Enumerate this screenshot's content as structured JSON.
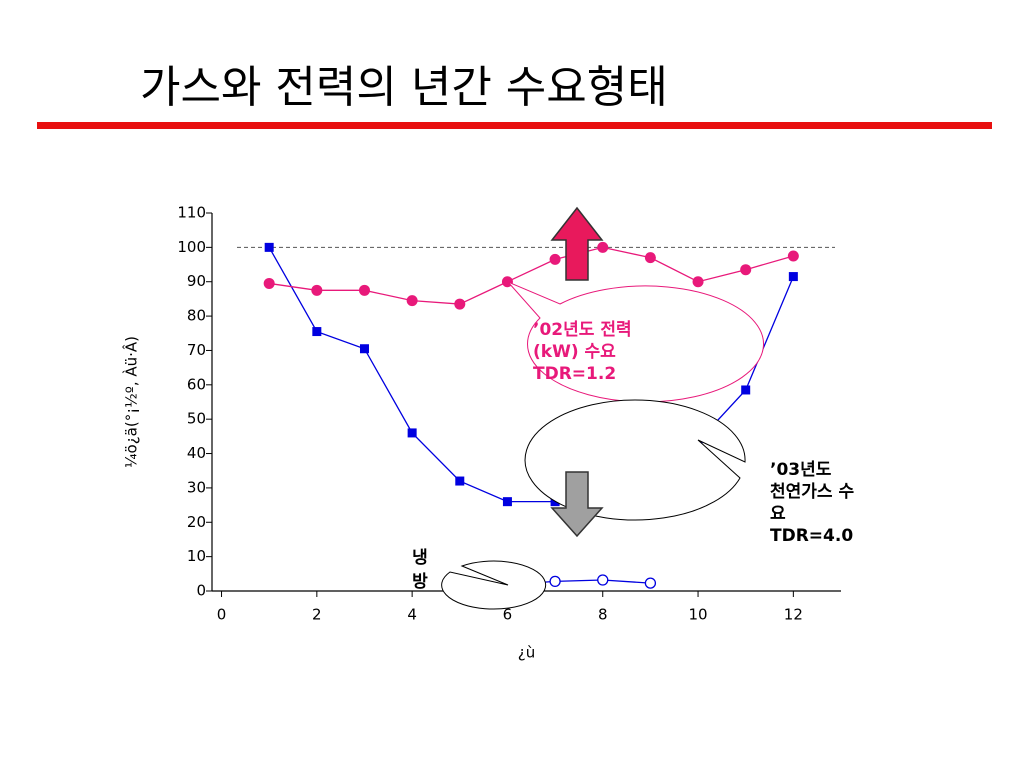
{
  "chart_data": {
    "type": "line",
    "title": "가스와 전력의 년간 수요형태",
    "x_label": "¿ù",
    "y_label": "¼ö¿ä(°¡½º, Àü·Â)",
    "x": [
      1,
      2,
      3,
      4,
      5,
      6,
      7,
      8,
      9,
      10,
      11,
      12
    ],
    "series": [
      {
        "name": "gas",
        "color": "#0000e0",
        "marker": "square",
        "values": [
          100,
          75.5,
          70.5,
          46,
          32,
          26,
          26,
          25,
          27,
          43.5,
          58.5,
          91.5
        ]
      },
      {
        "name": "power",
        "color": "#e8197a",
        "marker": "circle",
        "values": [
          89.5,
          87.5,
          87.5,
          84.5,
          83.5,
          90,
          96.5,
          100,
          97,
          90,
          93.5,
          97.5
        ]
      },
      {
        "name": "cooling",
        "color": "#0000e0",
        "marker": "open-circle",
        "values": [
          null,
          null,
          null,
          null,
          0.8,
          1.8,
          2.8,
          3.2,
          2.3,
          null,
          null,
          null
        ]
      }
    ],
    "xlim": [
      -0.2,
      13
    ],
    "ylim": [
      0,
      110
    ],
    "xticks": [
      0,
      2,
      4,
      6,
      8,
      10,
      12
    ],
    "yticks": [
      0,
      10,
      20,
      30,
      40,
      50,
      60,
      70,
      80,
      90,
      100,
      110
    ],
    "reference_line": 100,
    "annotations": [
      {
        "lines": [
          "’02년도 전력",
          "(kW) 수요",
          "TDR=1.2"
        ],
        "color": "#e8197a"
      },
      {
        "lines": [
          "’03년도",
          "천연가스 수",
          "요",
          "TDR=4.0"
        ],
        "color": "#000000"
      },
      {
        "lines": [
          "냉",
          "방"
        ],
        "color": "#000000"
      }
    ]
  }
}
